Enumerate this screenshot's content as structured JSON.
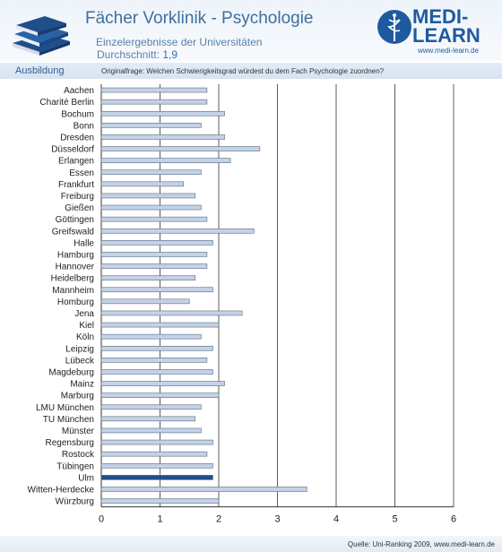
{
  "header": {
    "title": "Fächer Vorklinik - Psychologie",
    "subtitle": "Einzelergebnisse der Universitäten",
    "average_label": "Durchschnitt:",
    "average_value": "1,9",
    "brand_top": "MEDI-",
    "brand_bottom": "LEARN",
    "brand_url": "www.medi-learn.de"
  },
  "section": {
    "label": "Ausbildung",
    "question": "Originalfrage: Welchen Schwierigkeitsgrad würdest du dem Fach Psychologie zuordnen?"
  },
  "footer": {
    "source": "Quelle: Uni-Ranking 2009, www.medi-learn.de"
  },
  "colors": {
    "bar": "#c4d2e6",
    "bar_stroke": "#5a6a80",
    "highlight": "#1f4f8a",
    "grid": "#333333",
    "brand": "#1f5aa0"
  },
  "chart_data": {
    "type": "bar",
    "orientation": "horizontal",
    "categories": [
      "Aachen",
      "Charité Berlin",
      "Bochum",
      "Bonn",
      "Dresden",
      "Düsseldorf",
      "Erlangen",
      "Essen",
      "Frankfurt",
      "Freiburg",
      "Gießen",
      "Göttingen",
      "Greifswald",
      "Halle",
      "Hamburg",
      "Hannover",
      "Heidelberg",
      "Mannheim",
      "Homburg",
      "Jena",
      "Kiel",
      "Köln",
      "Leipzig",
      "Lübeck",
      "Magdeburg",
      "Mainz",
      "Marburg",
      "LMU München",
      "TU München",
      "Münster",
      "Regensburg",
      "Rostock",
      "Tübingen",
      "Ulm",
      "Witten-Herdecke",
      "Würzburg"
    ],
    "values": [
      1.8,
      1.8,
      2.1,
      1.7,
      2.1,
      2.7,
      2.2,
      1.7,
      1.4,
      1.6,
      1.7,
      1.8,
      2.6,
      1.9,
      1.8,
      1.8,
      1.6,
      1.9,
      1.5,
      2.4,
      2.0,
      1.7,
      1.9,
      1.8,
      1.9,
      2.1,
      2.0,
      1.7,
      1.6,
      1.7,
      1.9,
      1.8,
      1.9,
      1.9,
      3.5,
      2.0
    ],
    "highlight": "Ulm",
    "xlim": [
      0,
      6
    ],
    "xticks": [
      0,
      1,
      2,
      3,
      4,
      5,
      6
    ],
    "grid": true
  }
}
